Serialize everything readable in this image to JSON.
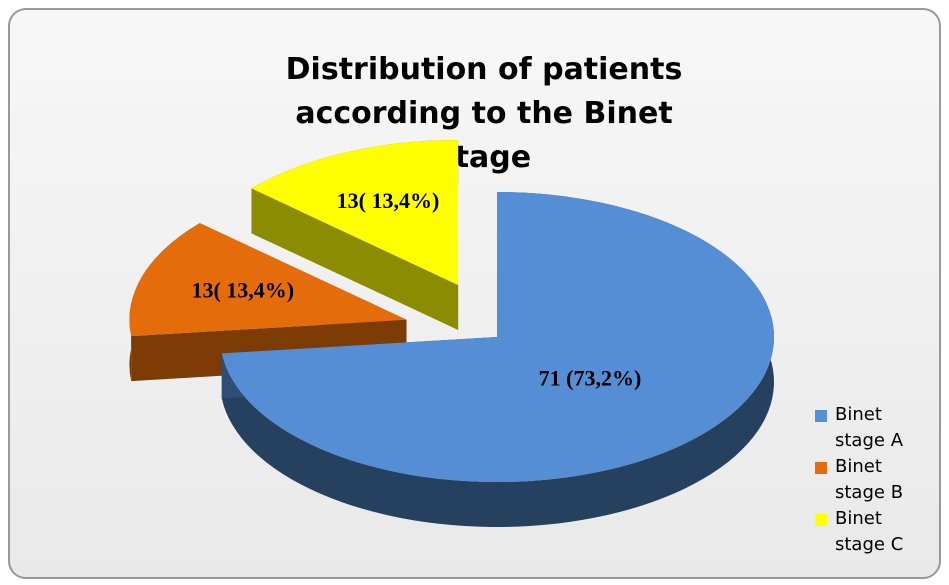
{
  "chart_data": {
    "type": "pie",
    "title": "Distribution of patients according to the Binet stage",
    "categories": [
      "Binet stage A",
      "Binet stage B",
      "Binet stage C"
    ],
    "values": [
      71,
      13,
      13
    ],
    "value_labels": [
      "71 (73,2%)",
      "13( 13,4%)",
      "13( 13,4%)"
    ],
    "colors": [
      "#558ed5",
      "#e46c0a",
      "#ffff00"
    ]
  }
}
